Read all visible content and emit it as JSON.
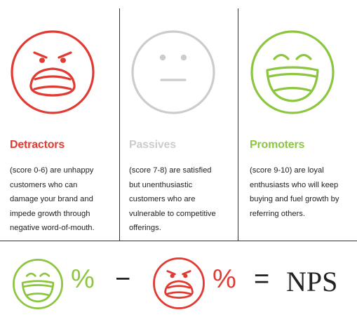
{
  "colors": {
    "detractor": "#e03a32",
    "passive": "#cccccc",
    "promoter": "#8cc63f",
    "text": "#222222"
  },
  "panels": [
    {
      "icon": "angry-face-icon",
      "title": "Detractors",
      "desc_lines": [
        "(score 0-6) are unhappy",
        "customers who can",
        "damage your brand and",
        "impede growth through",
        "negative word-of-mouth."
      ]
    },
    {
      "icon": "neutral-face-icon",
      "title": "Passives",
      "desc_lines": [
        "(score 7-8) are satisfied",
        "but unenthusiastic",
        "customers who are",
        "vulnerable to competitive",
        "offerings."
      ]
    },
    {
      "icon": "happy-face-icon",
      "title": "Promoters",
      "desc_lines": [
        "(score 9-10) are loyal",
        "enthusiasts who will keep",
        "buying and fuel growth by",
        "referring others."
      ]
    }
  ],
  "formula": {
    "percent_promoters": "%",
    "minus": "−",
    "percent_detractors": "%",
    "equals": "=",
    "result": "NPS"
  }
}
